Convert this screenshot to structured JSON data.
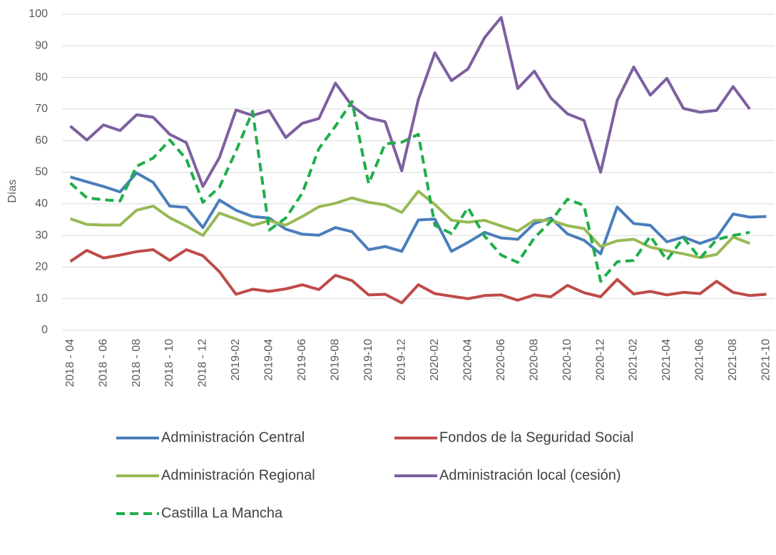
{
  "chart_data": {
    "type": "line",
    "y_label": "Días",
    "categories": [
      "2018 - 04",
      null,
      "2018 - 06",
      null,
      "2018 - 08",
      null,
      "2018 - 10",
      null,
      "2018 - 12",
      null,
      "2019-02",
      null,
      "2019-04",
      null,
      "2019-06",
      null,
      "2019-08",
      null,
      "2019-10",
      null,
      "2019-12",
      null,
      "2020-02",
      null,
      "2020-04",
      null,
      "2020-06",
      null,
      "2020-08",
      null,
      "2020-10",
      null,
      "2020-12",
      null,
      "2021-02",
      null,
      "2021-04",
      null,
      "2021-06",
      null,
      "2021-08",
      null,
      "2021-10"
    ],
    "ylim": [
      0,
      100
    ],
    "yticks": [
      0,
      10,
      20,
      30,
      40,
      50,
      60,
      70,
      80,
      90,
      100
    ],
    "grid": true,
    "series": [
      {
        "name": "Administración Central",
        "color": "#4a7ebb",
        "dashed": false,
        "values": [
          48.5,
          47,
          45.5,
          43.8,
          49.8,
          46.8,
          39.3,
          38.9,
          32.5,
          41.2,
          38,
          36,
          35.5,
          32,
          30.4,
          30.1,
          32.5,
          31.2,
          25.5,
          26.5,
          25,
          34.9,
          35.2,
          25,
          27.8,
          31,
          29.2,
          28.8,
          33.8,
          35.5,
          30.5,
          28.5,
          24.2,
          39,
          33.8,
          33.2,
          28,
          29.5,
          27.5,
          29.3,
          36.8,
          35.8,
          36
        ]
      },
      {
        "name": "Fondos de la Seguridad Social",
        "color": "#be4b48",
        "dashed": false,
        "values": [
          21.8,
          25.3,
          22.9,
          23.8,
          24.9,
          25.5,
          22.1,
          25.5,
          23.6,
          18.5,
          11.4,
          13,
          12.3,
          13.1,
          14.4,
          12.9,
          17.4,
          15.7,
          11.2,
          11.4,
          8.7,
          14.4,
          11.6,
          10.8,
          10,
          11,
          11.2,
          9.5,
          11.2,
          10.6,
          14.2,
          11.9,
          10.6,
          16.1,
          11.5,
          12.3,
          11.2,
          12,
          11.6,
          15.5,
          12,
          11,
          11.4
        ]
      },
      {
        "name": "Administración Regional",
        "color": "#98b954",
        "dashed": false,
        "values": [
          35.3,
          33.5,
          33.3,
          33.3,
          38,
          39.3,
          35.6,
          33,
          30,
          37.1,
          35.2,
          33.2,
          34.7,
          33.3,
          36,
          39.1,
          40.2,
          41.9,
          40.5,
          39.7,
          37.3,
          44,
          39.8,
          34.8,
          34.2,
          34.8,
          33,
          31.4,
          34.8,
          34.8,
          33.1,
          32.2,
          26.5,
          28.3,
          28.8,
          26.3,
          25.2,
          24.2,
          23,
          24,
          29.5,
          27.5,
          null
        ]
      },
      {
        "name": "Administración local (cesión)",
        "color": "#7d60a0",
        "dashed": false,
        "values": [
          64.6,
          60.2,
          65,
          63.2,
          68.2,
          67.4,
          62,
          59.4,
          45.5,
          54.7,
          69.7,
          68,
          69.5,
          61,
          65.5,
          67,
          78.2,
          71,
          67.2,
          66,
          50.5,
          73,
          87.8,
          79,
          82.7,
          92.6,
          99,
          76.5,
          82,
          73.5,
          68.5,
          66.4,
          50,
          72.7,
          83.3,
          74.4,
          79.7,
          70.2,
          69,
          69.6,
          77.1,
          70,
          null
        ]
      },
      {
        "name": "Castilla La Mancha",
        "color": "#1fae4b",
        "dashed": true,
        "values": [
          46.6,
          41.9,
          41.3,
          40.9,
          51.9,
          54.5,
          60.2,
          54.2,
          40.5,
          45.3,
          56.7,
          69.3,
          31.7,
          35.5,
          43.4,
          57.5,
          64.6,
          72.4,
          46.4,
          59,
          59.5,
          62,
          33.2,
          30.6,
          38.8,
          29.8,
          23.8,
          21.5,
          29.2,
          34.5,
          41.5,
          39.5,
          15.5,
          21.7,
          22.1,
          29.8,
          22.2,
          29.3,
          22.8,
          28.7,
          30,
          31,
          null
        ]
      }
    ]
  }
}
